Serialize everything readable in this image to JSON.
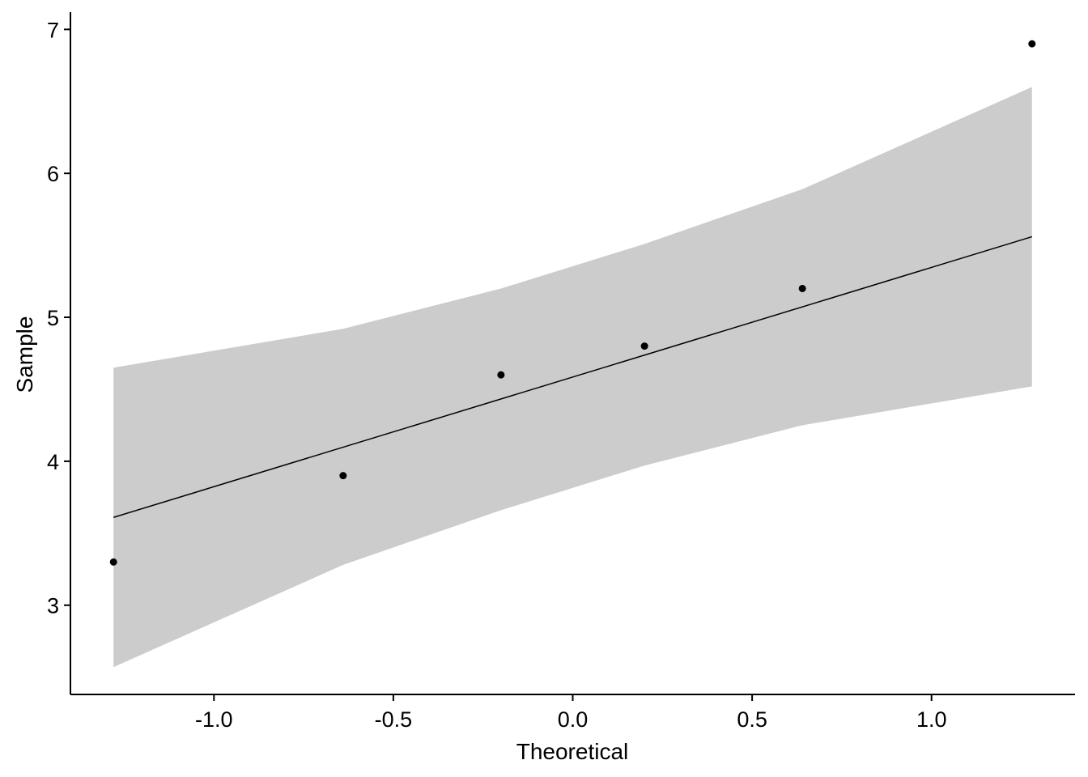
{
  "chart_data": {
    "type": "scatter",
    "title": "",
    "xlabel": "Theoretical",
    "ylabel": "Sample",
    "xlim": [
      -1.4,
      1.4
    ],
    "ylim": [
      2.38,
      7.12
    ],
    "x_ticks": [
      -1.0,
      -0.5,
      0.0,
      0.5,
      1.0
    ],
    "x_tick_labels": [
      "-1.0",
      "-0.5",
      "0.0",
      "0.5",
      "1.0"
    ],
    "y_ticks": [
      3,
      4,
      5,
      6,
      7
    ],
    "y_tick_labels": [
      "3",
      "4",
      "5",
      "6",
      "7"
    ],
    "grid": false,
    "legend": "none",
    "points": [
      {
        "x": -1.28,
        "y": 3.3
      },
      {
        "x": -0.64,
        "y": 3.9
      },
      {
        "x": -0.2,
        "y": 4.6
      },
      {
        "x": 0.2,
        "y": 4.8
      },
      {
        "x": 0.64,
        "y": 5.2
      },
      {
        "x": 1.28,
        "y": 6.9
      }
    ],
    "reference_line": {
      "x": [
        -1.28,
        1.28
      ],
      "y": [
        3.61,
        5.56
      ]
    },
    "confidence_band": [
      {
        "x": -1.28,
        "lower": 2.57,
        "upper": 4.65
      },
      {
        "x": -0.64,
        "lower": 3.28,
        "upper": 4.92
      },
      {
        "x": -0.2,
        "lower": 3.66,
        "upper": 5.2
      },
      {
        "x": 0.2,
        "lower": 3.97,
        "upper": 5.51
      },
      {
        "x": 0.64,
        "lower": 4.25,
        "upper": 5.89
      },
      {
        "x": 1.28,
        "lower": 4.52,
        "upper": 6.6
      }
    ],
    "colors": {
      "points": "#000000",
      "line": "#000000",
      "band": "#cccccc",
      "axis": "#000000"
    }
  }
}
